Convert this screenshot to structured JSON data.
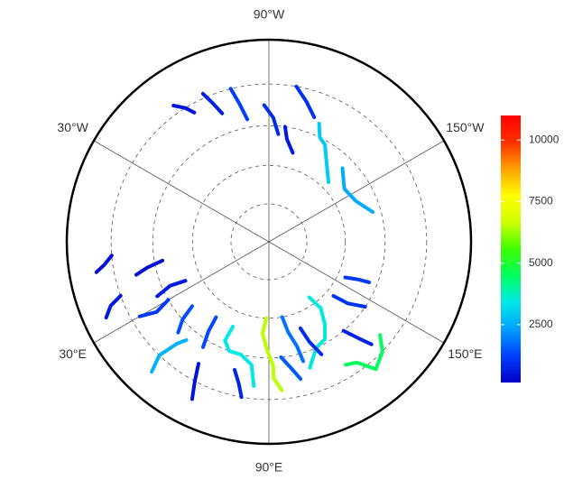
{
  "map": {
    "lat_limit": 40,
    "graticule_lats": [
      80,
      70,
      60,
      50
    ],
    "meridian_labels": [
      {
        "lon": -90,
        "label": "90°W"
      },
      {
        "lon": -30,
        "label": "30°W"
      },
      {
        "lon": -150,
        "label": "150°W"
      },
      {
        "lon": 30,
        "label": "30°E"
      },
      {
        "lon": 150,
        "label": "150°E"
      },
      {
        "lon": 90,
        "label": "90°E"
      }
    ],
    "colorbar": {
      "lim": [
        150,
        11000
      ],
      "ticks": [
        2500,
        5000,
        7500,
        10000
      ],
      "colors": [
        "#0000c8",
        "#0040ff",
        "#00a0ff",
        "#00e8e8",
        "#00ff60",
        "#40ff00",
        "#d0ff00",
        "#ffff00",
        "#ffa000",
        "#ff3000",
        "#ff0000"
      ]
    },
    "rivers": [
      {
        "value": 6500,
        "lonlat": [
          [
            88,
            70
          ],
          [
            86,
            66
          ],
          [
            89,
            62
          ],
          [
            92,
            58
          ],
          [
            92,
            55
          ],
          [
            95,
            52
          ]
        ]
      },
      {
        "value": 3500,
        "lonlat": [
          [
            126,
            72
          ],
          [
            128,
            68
          ],
          [
            124,
            64
          ],
          [
            120,
            61
          ],
          [
            114,
            60
          ],
          [
            108,
            56
          ]
        ]
      },
      {
        "value": 3400,
        "lonlat": [
          [
            67,
            66
          ],
          [
            66,
            62
          ],
          [
            70,
            60
          ],
          [
            76,
            60
          ],
          [
            82,
            58
          ],
          [
            84,
            53
          ]
        ]
      },
      {
        "value": 4500,
        "lonlat": [
          [
            140,
            53
          ],
          [
            136,
            50
          ],
          [
            130,
            48
          ],
          [
            126,
            52
          ],
          [
            122,
            53
          ]
        ]
      },
      {
        "value": 3000,
        "lonlat": [
          [
            -135,
            68
          ],
          [
            -125,
            64
          ],
          [
            -120,
            61
          ],
          [
            -116,
            60
          ],
          [
            -113,
            57
          ]
        ]
      },
      {
        "value": 2500,
        "lonlat": [
          [
            -164,
            62
          ],
          [
            -155,
            65
          ],
          [
            -145,
            66
          ],
          [
            -135,
            63
          ]
        ]
      },
      {
        "value": 2600,
        "lonlat": [
          [
            48,
            46
          ],
          [
            46,
            50
          ],
          [
            48,
            55
          ],
          [
            50,
            57
          ]
        ]
      },
      {
        "value": 900,
        "lonlat": [
          [
            -95,
            62
          ],
          [
            -92,
            58
          ],
          [
            -88,
            55
          ]
        ]
      },
      {
        "value": 1200,
        "lonlat": [
          [
            -80,
            58
          ],
          [
            -78,
            54
          ],
          [
            -76,
            50
          ]
        ]
      },
      {
        "value": 700,
        "lonlat": [
          [
            -70,
            55
          ],
          [
            -68,
            52
          ],
          [
            -66,
            49
          ]
        ]
      },
      {
        "value": 600,
        "lonlat": [
          [
            -105,
            66
          ],
          [
            -100,
            63
          ],
          [
            -98,
            60
          ]
        ]
      },
      {
        "value": 1000,
        "lonlat": [
          [
            -110,
            56
          ],
          [
            -105,
            53
          ],
          [
            -100,
            50
          ]
        ]
      },
      {
        "value": 500,
        "lonlat": [
          [
            -60,
            52
          ],
          [
            -58,
            50
          ],
          [
            -55,
            48
          ]
        ]
      },
      {
        "value": 400,
        "lonlat": [
          [
            10,
            62
          ],
          [
            12,
            58
          ],
          [
            14,
            55
          ]
        ]
      },
      {
        "value": 600,
        "lonlat": [
          [
            25,
            66
          ],
          [
            24,
            62
          ],
          [
            26,
            58
          ]
        ]
      },
      {
        "value": 1100,
        "lonlat": [
          [
            30,
            60
          ],
          [
            32,
            56
          ],
          [
            30,
            52
          ]
        ]
      },
      {
        "value": 1400,
        "lonlat": [
          [
            40,
            64
          ],
          [
            42,
            60
          ],
          [
            45,
            57
          ]
        ]
      },
      {
        "value": 1300,
        "lonlat": [
          [
            55,
            66
          ],
          [
            56,
            62
          ],
          [
            58,
            58
          ]
        ]
      },
      {
        "value": 1800,
        "lonlat": [
          [
            100,
            70
          ],
          [
            102,
            66
          ],
          [
            105,
            62
          ],
          [
            106,
            58
          ]
        ]
      },
      {
        "value": 900,
        "lonlat": [
          [
            110,
            66
          ],
          [
            112,
            62
          ],
          [
            115,
            58
          ]
        ]
      },
      {
        "value": 1000,
        "lonlat": [
          [
            140,
            68
          ],
          [
            142,
            64
          ],
          [
            146,
            60
          ]
        ]
      },
      {
        "value": 1100,
        "lonlat": [
          [
            155,
            68
          ],
          [
            157,
            65
          ],
          [
            158,
            62
          ]
        ]
      },
      {
        "value": 800,
        "lonlat": [
          [
            75,
            56
          ],
          [
            78,
            53
          ],
          [
            80,
            50
          ]
        ]
      },
      {
        "value": 400,
        "lonlat": [
          [
            5,
            50
          ],
          [
            8,
            48
          ],
          [
            10,
            46
          ]
        ]
      },
      {
        "value": 600,
        "lonlat": [
          [
            20,
            50
          ],
          [
            22,
            47
          ],
          [
            25,
            45
          ]
        ]
      },
      {
        "value": 700,
        "lonlat": [
          [
            130,
            60
          ],
          [
            133,
            56
          ],
          [
            135,
            53
          ]
        ]
      },
      {
        "value": 1500,
        "lonlat": [
          [
            96,
            60
          ],
          [
            100,
            57
          ],
          [
            103,
            54
          ]
        ]
      },
      {
        "value": 500,
        "lonlat": [
          [
            60,
            54
          ],
          [
            62,
            50
          ],
          [
            64,
            46
          ]
        ]
      }
    ]
  }
}
